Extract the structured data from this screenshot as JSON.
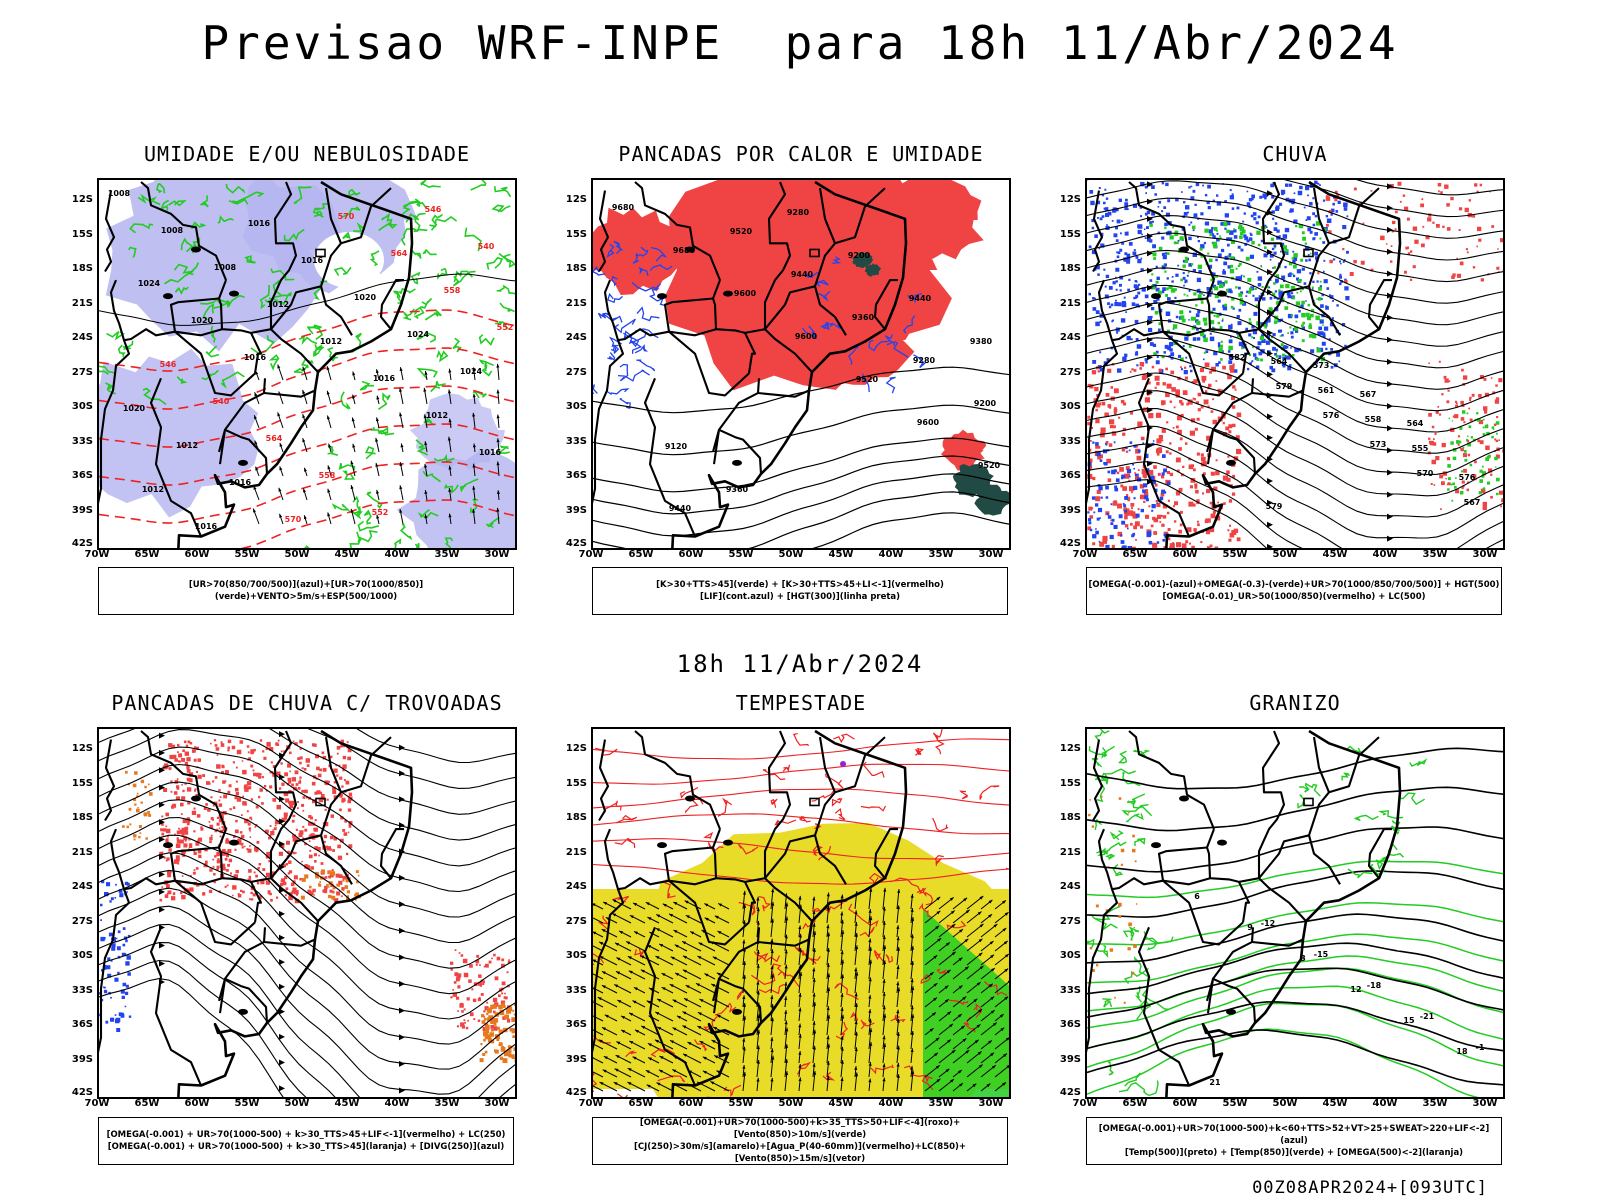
{
  "header": {
    "title": "Previsao WRF-INPE  para 18h 11/Abr/2024",
    "subtitle": "18h 11/Abr/2024",
    "footer": "00Z08APR2024+[093UTC]"
  },
  "axes": {
    "lat_labels": [
      "12S",
      "15S",
      "18S",
      "21S",
      "24S",
      "27S",
      "30S",
      "33S",
      "36S",
      "39S",
      "42S"
    ],
    "lon_labels": [
      "70W",
      "65W",
      "60W",
      "55W",
      "50W",
      "45W",
      "40W",
      "35W",
      "30W"
    ]
  },
  "colors": {
    "blue_fill": "#b4b4f0",
    "green": "#22cc22",
    "red": "#ee2222",
    "red_fill": "#f04444",
    "blue": "#2244ee",
    "orange": "#e8781e",
    "yellow": "#e8dc28",
    "dark_teal": "#224a44",
    "black": "#000000"
  },
  "panels": [
    {
      "id": "umidade",
      "title": "UMIDADE E/OU NEBULOSIDADE",
      "legend": [
        "[UR>70(850/700/500)](azul)+[UR>70(1000/850)](verde)+VENTO>5m/s+ESP(500/1000)"
      ],
      "map_labels": [
        "1008",
        "1008",
        "1008",
        "1012",
        "1012",
        "1016",
        "1012",
        "1016",
        "1012",
        "1016",
        "1016",
        "1016",
        "1020",
        "1024",
        "1024",
        "1020",
        "1012",
        "1016",
        "570",
        "570",
        "564",
        "558",
        "552",
        "546",
        "540",
        "564",
        "558",
        "552",
        "546",
        "540",
        "1024",
        "1020",
        "1016"
      ]
    },
    {
      "id": "pancadas_calor",
      "title": "PANCADAS POR CALOR E UMIDADE",
      "legend": [
        "[K>30+TTS>45](verde) + [K>30+TTS>45+LI<-1](vermelho)",
        "[LIF](cont.azul) + [HGT(300)](linha preta)"
      ],
      "map_labels": [
        "9680",
        "9680",
        "9600",
        "9600",
        "9520",
        "9600",
        "9520",
        "9440",
        "9520",
        "9440",
        "9360",
        "9280",
        "9200",
        "9120",
        "9360",
        "9280",
        "9200",
        "9440",
        "9380"
      ]
    },
    {
      "id": "chuva",
      "title": "CHUVA",
      "legend": [
        "[OMEGA(-0.001)-(azul)+OMEGA(-0.3)-(verde)+UR>70(1000/850/700/500)] + HGT(500)",
        "[OMEGA(-0.01)_UR>50(1000/850)(vermelho) + LC(500)"
      ],
      "map_labels": [
        "582",
        "579",
        "576",
        "573",
        "570",
        "567",
        "564",
        "561",
        "558",
        "555",
        "576",
        "579",
        "573",
        "567",
        "564"
      ]
    },
    {
      "id": "trovoadas",
      "title": "PANCADAS DE CHUVA C/ TROVOADAS",
      "legend": [
        "[OMEGA(-0.001) + UR>70(1000-500) + k>30_TTS>45+LIF<-1](vermelho) + LC(250)",
        "[OMEGA(-0.001) + UR>70(1000-500) + k>30_TTS>45](laranja) + [DIVG(250)](azul)"
      ],
      "map_labels": []
    },
    {
      "id": "tempestade",
      "title": "TEMPESTADE",
      "legend": [
        "[OMEGA(-0.001)+UR>70(1000-500)+k>35_TTS>50+LIF<-4](roxo)+[Vento(850)>10m/s](verde)",
        "[CJ(250)>30m/s](amarelo)+[Agua_P(40-60mm)](vermelho)+LC(850)+[Vento(850)>15m/s](vetor)"
      ],
      "map_labels": []
    },
    {
      "id": "granizo",
      "title": "GRANIZO",
      "legend": [
        "[OMEGA(-0.001)+UR>70(1000-500)+k<60+TTS>52+VT>25+SWEAT>220+LIF<-2](azul)",
        "[Temp(500)](preto) + [Temp(850)](verde) + [OMEGA(500)<-2](laranja)"
      ],
      "map_labels": [
        "6",
        "9",
        "3",
        "12",
        "15",
        "18",
        "21",
        "-12",
        "-15",
        "-18",
        "-21",
        "-1"
      ]
    }
  ]
}
